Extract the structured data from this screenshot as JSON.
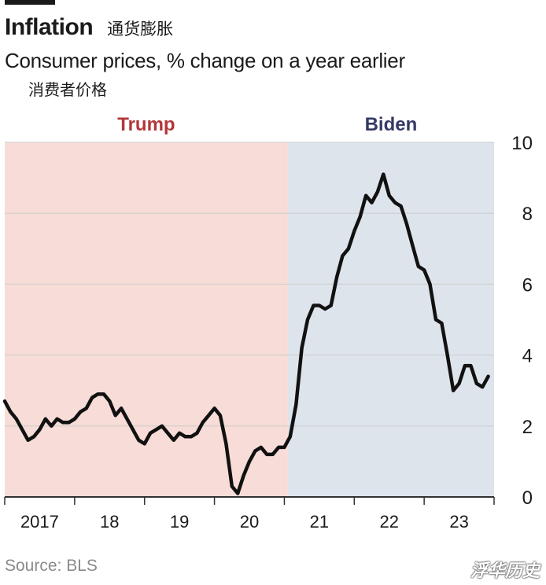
{
  "header": {
    "title": "Inflation",
    "title_cn": "通货膨胀",
    "subtitle": "Consumer prices, % change on a year earlier",
    "subtitle_cn": "消费者价格"
  },
  "footer": {
    "source": "Source: BLS",
    "watermark": "浮华历史"
  },
  "chart_data": {
    "type": "line",
    "title": "Inflation",
    "subtitle": "Consumer prices, % change on a year earlier",
    "ylim": [
      0,
      10
    ],
    "yticks": [
      "0",
      "2",
      "4",
      "6",
      "8",
      "10"
    ],
    "xlim": [
      2017.0,
      2024.0
    ],
    "xtick_labels": [
      {
        "label": "2017",
        "x": 2017.5
      },
      {
        "label": "18",
        "x": 2018.5
      },
      {
        "label": "19",
        "x": 2019.5
      },
      {
        "label": "20",
        "x": 2020.5
      },
      {
        "label": "21",
        "x": 2021.5
      },
      {
        "label": "22",
        "x": 2022.5
      },
      {
        "label": "23",
        "x": 2023.5
      }
    ],
    "grid": true,
    "y_axis_position": "right",
    "periods": [
      {
        "label": "Trump",
        "start": 2017.0,
        "end": 2021.05,
        "color": "#f7dcd7",
        "label_color": "#b2363a"
      },
      {
        "label": "Biden",
        "start": 2021.05,
        "end": 2024.0,
        "color": "#dee4ec",
        "label_color": "#333a66"
      }
    ],
    "colors": {
      "line": "#111111",
      "grid": "#cccccc",
      "axis": "#333333"
    },
    "series": [
      {
        "x": [
          2017.0,
          2017.083,
          2017.167,
          2017.25,
          2017.333,
          2017.417,
          2017.5,
          2017.583,
          2017.667,
          2017.75,
          2017.833,
          2017.917,
          2018.0,
          2018.083,
          2018.167,
          2018.25,
          2018.333,
          2018.417,
          2018.5,
          2018.583,
          2018.667,
          2018.75,
          2018.833,
          2018.917,
          2019.0,
          2019.083,
          2019.167,
          2019.25,
          2019.333,
          2019.417,
          2019.5,
          2019.583,
          2019.667,
          2019.75,
          2019.833,
          2019.917,
          2020.0,
          2020.083,
          2020.167,
          2020.25,
          2020.333,
          2020.417,
          2020.5,
          2020.583,
          2020.667,
          2020.75,
          2020.833,
          2020.917,
          2021.0,
          2021.083,
          2021.167,
          2021.25,
          2021.333,
          2021.417,
          2021.5,
          2021.583,
          2021.667,
          2021.75,
          2021.833,
          2021.917,
          2022.0,
          2022.083,
          2022.167,
          2022.25,
          2022.333,
          2022.417,
          2022.5,
          2022.583,
          2022.667,
          2022.75,
          2022.833,
          2022.917,
          2023.0,
          2023.083,
          2023.167,
          2023.25,
          2023.333,
          2023.417,
          2023.5,
          2023.583,
          2023.667,
          2023.75,
          2023.833,
          2023.917
        ],
        "values": [
          2.7,
          2.4,
          2.2,
          1.9,
          1.6,
          1.7,
          1.9,
          2.2,
          2.0,
          2.2,
          2.1,
          2.1,
          2.2,
          2.4,
          2.5,
          2.8,
          2.9,
          2.9,
          2.7,
          2.3,
          2.5,
          2.2,
          1.9,
          1.6,
          1.5,
          1.8,
          1.9,
          2.0,
          1.8,
          1.6,
          1.8,
          1.7,
          1.7,
          1.8,
          2.1,
          2.3,
          2.5,
          2.3,
          1.5,
          0.3,
          0.1,
          0.6,
          1.0,
          1.3,
          1.4,
          1.2,
          1.2,
          1.4,
          1.4,
          1.7,
          2.6,
          4.2,
          5.0,
          5.4,
          5.4,
          5.3,
          5.4,
          6.2,
          6.8,
          7.0,
          7.5,
          7.9,
          8.5,
          8.3,
          8.6,
          9.1,
          8.5,
          8.3,
          8.2,
          7.7,
          7.1,
          6.5,
          6.4,
          6.0,
          5.0,
          4.9,
          4.0,
          3.0,
          3.2,
          3.7,
          3.7,
          3.2,
          3.1,
          3.4
        ]
      }
    ]
  }
}
